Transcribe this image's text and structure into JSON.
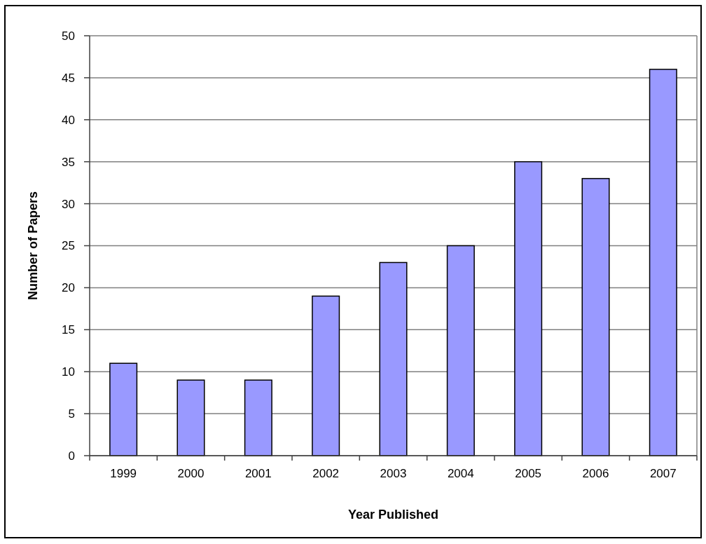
{
  "chart_data": {
    "type": "bar",
    "xlabel": "Year Published",
    "ylabel": "Number of Papers",
    "categories": [
      "1999",
      "2000",
      "2001",
      "2002",
      "2003",
      "2004",
      "2005",
      "2006",
      "2007"
    ],
    "values": [
      11,
      9,
      9,
      19,
      23,
      25,
      35,
      33,
      46
    ],
    "color": "#9999ff",
    "ylim": [
      0,
      50
    ],
    "yticks": [
      0,
      5,
      10,
      15,
      20,
      25,
      30,
      35,
      40,
      45,
      50
    ],
    "grid": "y"
  }
}
